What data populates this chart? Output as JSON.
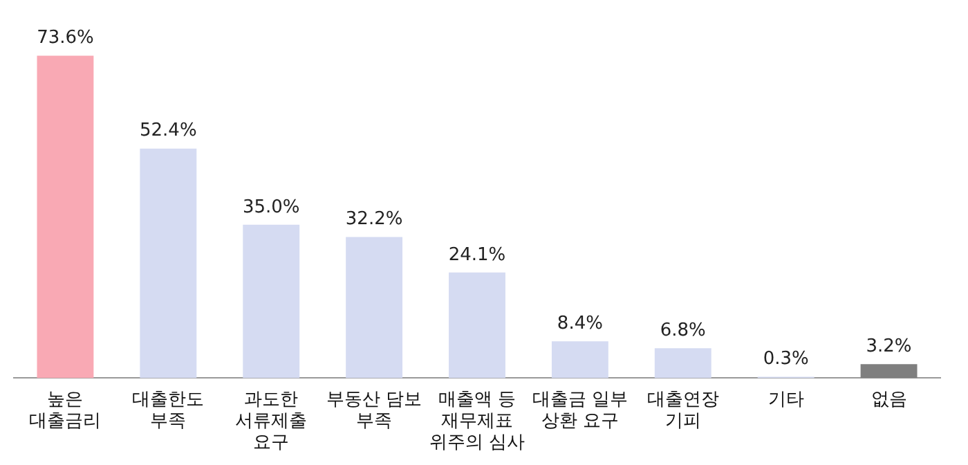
{
  "chart_data": {
    "type": "bar",
    "categories": [
      "높은\n대출금리",
      "대출한도\n부족",
      "과도한\n서류제출\n요구",
      "부동산 담보\n부족",
      "매출액 등\n재무제표\n위주의 심사",
      "대출금 일부\n상환 요구",
      "대출연장\n기피",
      "기타",
      "없음"
    ],
    "values": [
      73.6,
      52.4,
      35.0,
      32.2,
      24.1,
      8.4,
      6.8,
      0.3,
      3.2
    ],
    "colors": [
      "#f9a9b4",
      "#d5dbf2",
      "#d5dbf2",
      "#d5dbf2",
      "#d5dbf2",
      "#d5dbf2",
      "#d5dbf2",
      "#d5dbf2",
      "#7f7f7f"
    ],
    "value_labels": [
      "73.6%",
      "52.4%",
      "35.0%",
      "32.2%",
      "24.1%",
      "8.4%",
      "6.8%",
      "0.3%",
      "3.2%"
    ],
    "grid": false,
    "legend": false
  }
}
